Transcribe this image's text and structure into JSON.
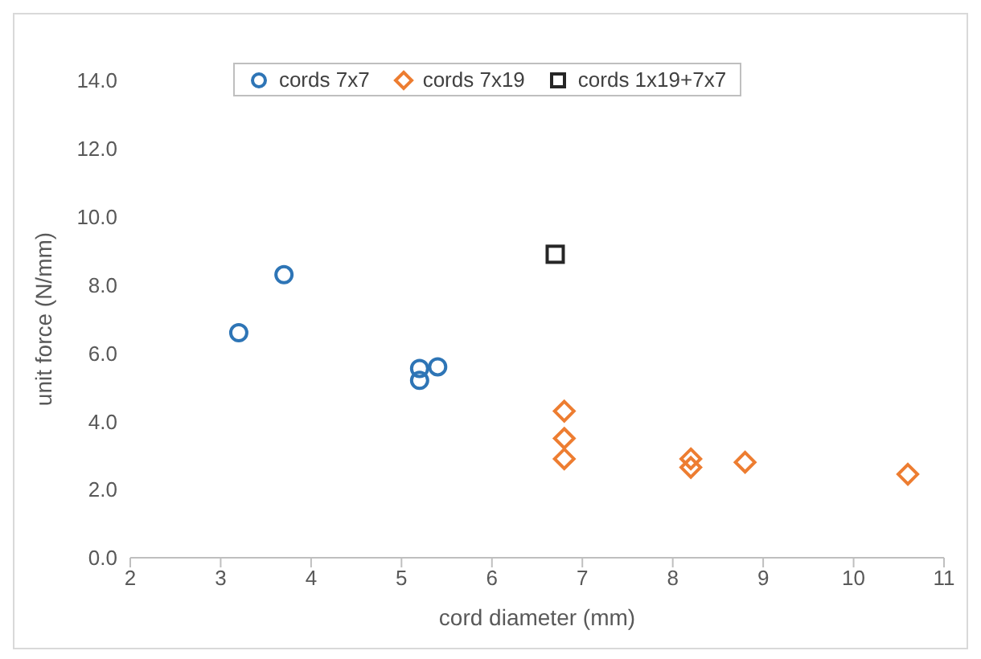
{
  "chart_data": {
    "type": "scatter",
    "xlabel": "cord diameter (mm)",
    "ylabel": "unit force (N/mm)",
    "xlim": [
      2,
      11
    ],
    "xticks": [
      2,
      3,
      4,
      5,
      6,
      7,
      8,
      9,
      10,
      11
    ],
    "ylim": [
      0,
      14
    ],
    "yticks": [
      {
        "value": 0,
        "label": "0.0"
      },
      {
        "value": 2,
        "label": "2.0"
      },
      {
        "value": 4,
        "label": "4.0"
      },
      {
        "value": 6,
        "label": "6.0"
      },
      {
        "value": 8,
        "label": "8.0"
      },
      {
        "value": 10,
        "label": "10.0"
      },
      {
        "value": 12,
        "label": "12.0"
      },
      {
        "value": 14,
        "label": "14.0"
      }
    ],
    "legend": "top",
    "grid": false,
    "series": [
      {
        "name": "cords 7x7",
        "color": "#2e75b6",
        "marker": "circle",
        "x": [
          3.2,
          3.7,
          5.2,
          5.2,
          5.4
        ],
        "values": [
          6.6,
          8.3,
          5.55,
          5.2,
          5.6
        ]
      },
      {
        "name": "cords 7x19",
        "color": "#ed7d31",
        "marker": "diamond",
        "x": [
          6.8,
          6.8,
          6.8,
          8.2,
          8.2,
          8.8,
          10.6
        ],
        "values": [
          4.3,
          3.5,
          2.9,
          2.9,
          2.65,
          2.8,
          2.45
        ]
      },
      {
        "name": "cords 1x19+7x7",
        "color": "#262626",
        "marker": "square",
        "x": [
          6.7
        ],
        "values": [
          8.9
        ]
      }
    ]
  }
}
